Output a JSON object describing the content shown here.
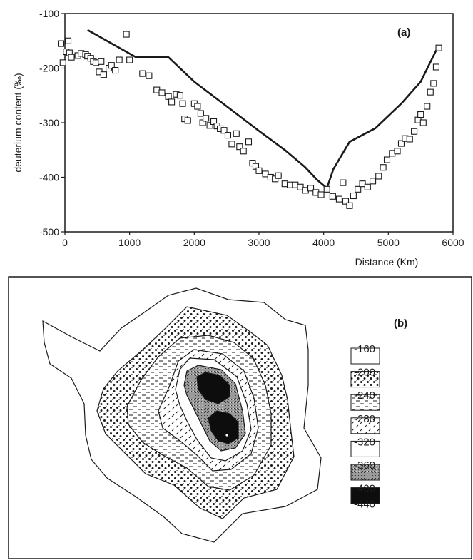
{
  "chart_data": [
    {
      "type": "scatter",
      "panel_label": "(a)",
      "xlabel": "Distance  (Km)",
      "ylabel": "deuterium content  (‰)",
      "xlim": [
        0,
        6000
      ],
      "ylim": [
        -500,
        -100
      ],
      "xticks": [
        0,
        1000,
        2000,
        3000,
        4000,
        5000,
        6000
      ],
      "yticks": [
        -100,
        -200,
        -300,
        -400,
        -500
      ],
      "grid": false,
      "series": [
        {
          "type": "line",
          "points": [
            [
              350,
              -130
            ],
            [
              1100,
              -180
            ],
            [
              1600,
              -180
            ],
            [
              2000,
              -225
            ],
            [
              2500,
              -270
            ],
            [
              3000,
              -315
            ],
            [
              3400,
              -350
            ],
            [
              3700,
              -380
            ],
            [
              3900,
              -405
            ],
            [
              4050,
              -420
            ],
            [
              4150,
              -385
            ],
            [
              4400,
              -335
            ],
            [
              4800,
              -310
            ],
            [
              5200,
              -265
            ],
            [
              5500,
              -225
            ],
            [
              5750,
              -165
            ]
          ]
        },
        {
          "type": "scatter",
          "marker": "open-square",
          "points": [
            [
              -60,
              -155
            ],
            [
              -30,
              -190
            ],
            [
              20,
              -170
            ],
            [
              50,
              -150
            ],
            [
              70,
              -172
            ],
            [
              100,
              -180
            ],
            [
              200,
              -177
            ],
            [
              250,
              -173
            ],
            [
              320,
              -175
            ],
            [
              350,
              -178
            ],
            [
              400,
              -182
            ],
            [
              440,
              -188
            ],
            [
              480,
              -190
            ],
            [
              530,
              -207
            ],
            [
              560,
              -188
            ],
            [
              600,
              -212
            ],
            [
              680,
              -200
            ],
            [
              720,
              -195
            ],
            [
              780,
              -204
            ],
            [
              840,
              -185
            ],
            [
              950,
              -138
            ],
            [
              1000,
              -185
            ],
            [
              1200,
              -210
            ],
            [
              1300,
              -214
            ],
            [
              1420,
              -240
            ],
            [
              1500,
              -245
            ],
            [
              1600,
              -252
            ],
            [
              1650,
              -262
            ],
            [
              1720,
              -248
            ],
            [
              1780,
              -250
            ],
            [
              1820,
              -265
            ],
            [
              1850,
              -293
            ],
            [
              1900,
              -296
            ],
            [
              2000,
              -265
            ],
            [
              2050,
              -270
            ],
            [
              2100,
              -283
            ],
            [
              2130,
              -300
            ],
            [
              2180,
              -292
            ],
            [
              2240,
              -305
            ],
            [
              2300,
              -298
            ],
            [
              2350,
              -306
            ],
            [
              2400,
              -311
            ],
            [
              2460,
              -314
            ],
            [
              2520,
              -323
            ],
            [
              2580,
              -339
            ],
            [
              2650,
              -320
            ],
            [
              2700,
              -344
            ],
            [
              2760,
              -352
            ],
            [
              2840,
              -335
            ],
            [
              2900,
              -374
            ],
            [
              2950,
              -380
            ],
            [
              3000,
              -388
            ],
            [
              3100,
              -394
            ],
            [
              3180,
              -400
            ],
            [
              3250,
              -403
            ],
            [
              3300,
              -397
            ],
            [
              3400,
              -412
            ],
            [
              3480,
              -414
            ],
            [
              3560,
              -414
            ],
            [
              3640,
              -418
            ],
            [
              3720,
              -424
            ],
            [
              3800,
              -420
            ],
            [
              3880,
              -428
            ],
            [
              3960,
              -432
            ],
            [
              4050,
              -422
            ],
            [
              4140,
              -435
            ],
            [
              4240,
              -440
            ],
            [
              4300,
              -410
            ],
            [
              4340,
              -444
            ],
            [
              4400,
              -452
            ],
            [
              4460,
              -434
            ],
            [
              4530,
              -422
            ],
            [
              4600,
              -412
            ],
            [
              4680,
              -418
            ],
            [
              4760,
              -407
            ],
            [
              4850,
              -398
            ],
            [
              4920,
              -382
            ],
            [
              4980,
              -368
            ],
            [
              5060,
              -356
            ],
            [
              5140,
              -352
            ],
            [
              5200,
              -338
            ],
            [
              5260,
              -329
            ],
            [
              5330,
              -330
            ],
            [
              5400,
              -316
            ],
            [
              5460,
              -295
            ],
            [
              5500,
              -285
            ],
            [
              5540,
              -300
            ],
            [
              5600,
              -270
            ],
            [
              5650,
              -244
            ],
            [
              5700,
              -228
            ],
            [
              5740,
              -198
            ],
            [
              5780,
              -163
            ]
          ]
        }
      ]
    },
    {
      "type": "heatmap",
      "panel_label": "(b)",
      "legend": [
        "-160",
        "-200",
        "-240",
        "-280",
        "-320",
        "-360",
        "-400",
        "-440"
      ],
      "legend_placement": "right"
    }
  ]
}
